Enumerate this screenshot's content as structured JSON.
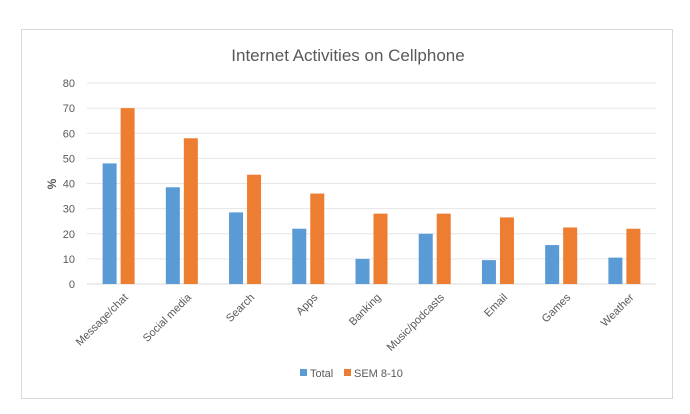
{
  "chart_data": {
    "type": "bar",
    "title": "Internet Activities on Cellphone",
    "xlabel": "",
    "ylabel": "%",
    "ylim": [
      0,
      80
    ],
    "yticks": [
      0,
      10,
      20,
      30,
      40,
      50,
      60,
      70,
      80
    ],
    "grid": true,
    "legend_position": "bottom",
    "categories": [
      "Message/chat",
      "Social media",
      "Search",
      "Apps",
      "Banking",
      "Music/podcasts",
      "Email",
      "Games",
      "Weather"
    ],
    "series": [
      {
        "name": "Total",
        "color": "#5b9bd5",
        "values": [
          48,
          38.5,
          28.5,
          22,
          10,
          20,
          9.5,
          15.5,
          10.5
        ]
      },
      {
        "name": "SEM 8-10",
        "color": "#ed7d31",
        "values": [
          70,
          58,
          43.5,
          36,
          28,
          28,
          26.5,
          22.5,
          22
        ]
      }
    ]
  }
}
